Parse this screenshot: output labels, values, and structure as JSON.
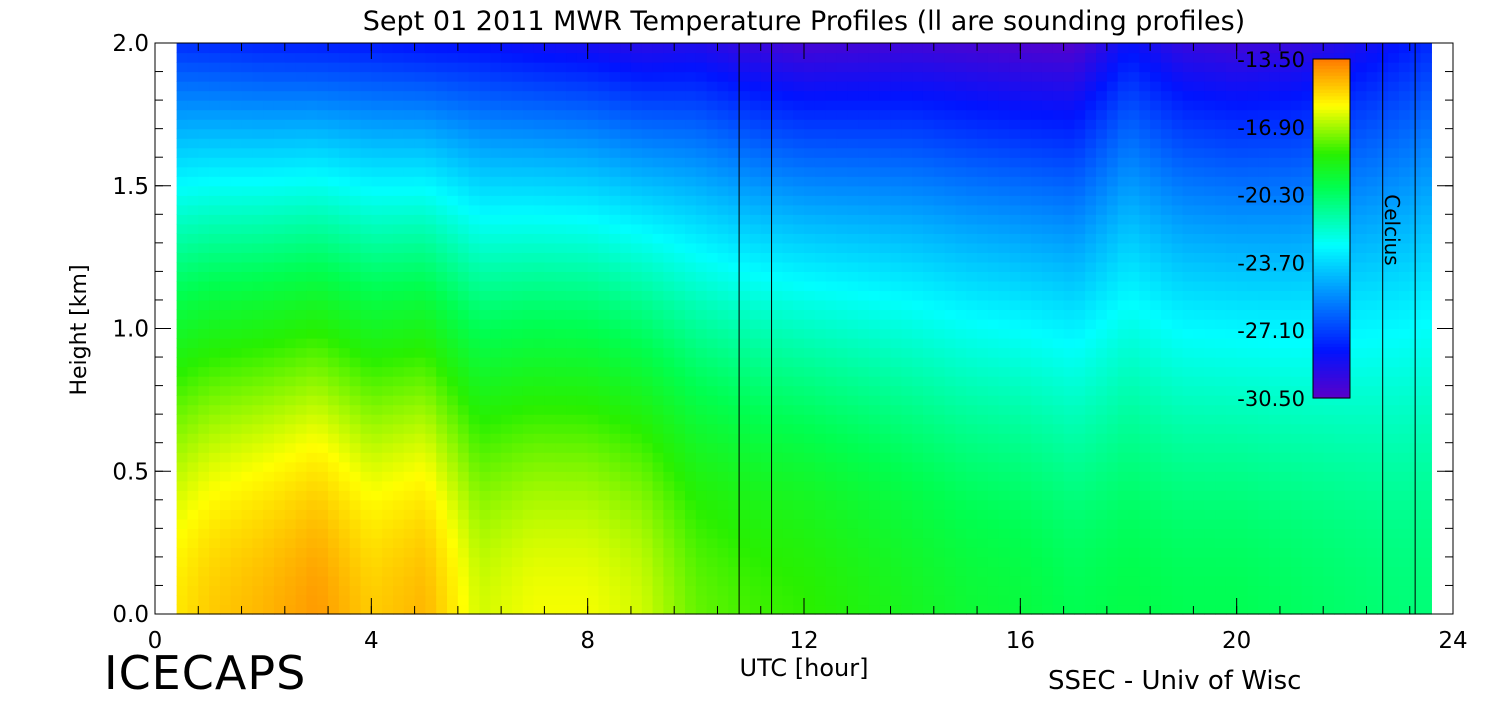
{
  "chart_data": {
    "type": "heatmap",
    "title": "Sept 01 2011 MWR Temperature Profiles (ll are sounding profiles)",
    "xlabel": "UTC [hour]",
    "ylabel": "Height [km]",
    "xlim": [
      0,
      24
    ],
    "ylim": [
      0,
      2
    ],
    "x_ticks": [
      "0",
      "4",
      "8",
      "12",
      "16",
      "20",
      "24"
    ],
    "y_ticks": [
      "0.0",
      "0.5",
      "1.0",
      "1.5",
      "2.0"
    ],
    "data_x_range": [
      0.4,
      23.6
    ],
    "x": [
      0.4,
      1,
      2,
      3,
      4,
      5,
      6,
      7,
      8,
      9,
      10,
      11,
      12,
      13,
      14,
      15,
      16,
      17,
      18,
      19,
      20,
      21,
      22,
      23,
      23.6
    ],
    "surface_temp": [
      -15.5,
      -15.0,
      -14.6,
      -14.1,
      -15.0,
      -14.6,
      -16.4,
      -16.0,
      -16.0,
      -16.4,
      -17.6,
      -18.0,
      -18.2,
      -18.6,
      -19.0,
      -19.4,
      -19.6,
      -20.0,
      -19.8,
      -20.0,
      -20.0,
      -20.2,
      -20.4,
      -20.6,
      -20.6
    ],
    "top_temp": [
      -27.5,
      -27.6,
      -27.8,
      -27.9,
      -28.0,
      -28.2,
      -28.3,
      -28.6,
      -28.8,
      -29.2,
      -29.0,
      -29.6,
      -30.0,
      -29.9,
      -29.8,
      -30.0,
      -30.2,
      -30.3,
      -28.3,
      -29.5,
      -29.8,
      -29.6,
      -29.0,
      -28.2,
      -27.6
    ],
    "sounding_times": [
      10.8,
      11.4,
      22.7,
      23.3
    ],
    "colorbar": {
      "label": "Celcius",
      "ticks": [
        "-13.50",
        "-16.90",
        "-20.30",
        "-23.70",
        "-27.10",
        "-30.50"
      ],
      "range": [
        -30.5,
        -13.5
      ]
    },
    "grid": false,
    "legend": "colorbar top-right inside plot"
  },
  "credits": {
    "project": "ICECAPS",
    "org": "SSEC - Univ of Wisc"
  }
}
